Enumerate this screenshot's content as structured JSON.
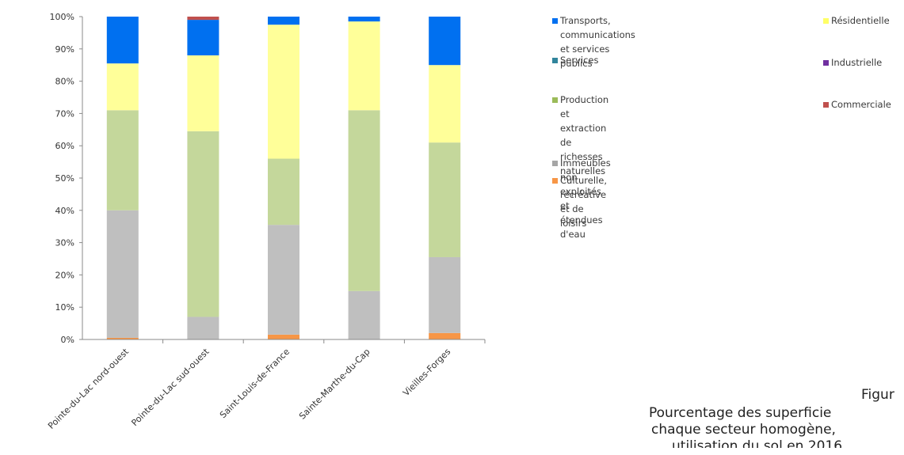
{
  "chart_data": {
    "type": "bar",
    "stacked": true,
    "categories": [
      "Pointe-du-Lac nord-ouest",
      "Pointe-du-Lac sud-ouest",
      "Saint-Louis-de-France",
      "Sainte-Marthe-du-Cap",
      "Vieilles-Forges"
    ],
    "y_ticks": [
      "0%",
      "10%",
      "20%",
      "30%",
      "40%",
      "50%",
      "60%",
      "70%",
      "80%",
      "90%",
      "100%"
    ],
    "ylim": [
      0,
      100
    ],
    "grid": false,
    "series": [
      {
        "name": "Culturelle, récréative et de loisirs",
        "color": "#f79646",
        "values": [
          0.5,
          0,
          1.5,
          0,
          2
        ]
      },
      {
        "name": "Immeubles non exploités et étendues d'eau",
        "color": "#bfbfbf",
        "values": [
          39.5,
          7,
          34,
          15,
          23.5
        ]
      },
      {
        "name": "Production et extraction de richesses naturelles",
        "color": "#c4d79b",
        "values": [
          31,
          57.5,
          20.5,
          56,
          35.5
        ]
      },
      {
        "name": "Résidentielle",
        "color": "#ffff99",
        "values": [
          14.5,
          23.5,
          41.5,
          27.5,
          24
        ]
      },
      {
        "name": "Services",
        "color": "#31859c",
        "values": [
          0,
          0,
          0,
          0,
          0
        ]
      },
      {
        "name": "Industrielle",
        "color": "#7030a0",
        "values": [
          0,
          0,
          0,
          0,
          0
        ]
      },
      {
        "name": "Transports, communications et services publics",
        "color": "#0070f0",
        "values": [
          14.5,
          11,
          2.5,
          1.5,
          15
        ]
      },
      {
        "name": "Commerciale",
        "color": "#c0504d",
        "values": [
          0,
          1,
          0,
          0,
          0
        ]
      }
    ],
    "legend_left": [
      {
        "label_lines": [
          "Transports, communications et services",
          "publics"
        ],
        "color": "#0070f0"
      },
      {
        "label_lines": [
          "Services"
        ],
        "color": "#31859c"
      },
      {
        "label_lines": [
          "Production et extraction de richesses",
          "naturelles"
        ],
        "color": "#9bbb59"
      },
      {
        "label_lines": [
          "Immeubles non exploités et étendues",
          "d'eau"
        ],
        "color": "#a6a6a6"
      },
      {
        "label_lines": [
          "Culturelle, récréative et de loisirs"
        ],
        "color": "#f79646"
      }
    ],
    "legend_right": [
      {
        "label": "Résidentielle",
        "color": "#ffff66"
      },
      {
        "label": "Industrielle",
        "color": "#7030a0"
      },
      {
        "label": "Commerciale",
        "color": "#c0504d"
      }
    ]
  },
  "caption": {
    "line1": "Figur",
    "line2": "Pourcentage des superficie",
    "line3": "chaque secteur homogène,",
    "line4": "utilisation du sol en 2016"
  }
}
